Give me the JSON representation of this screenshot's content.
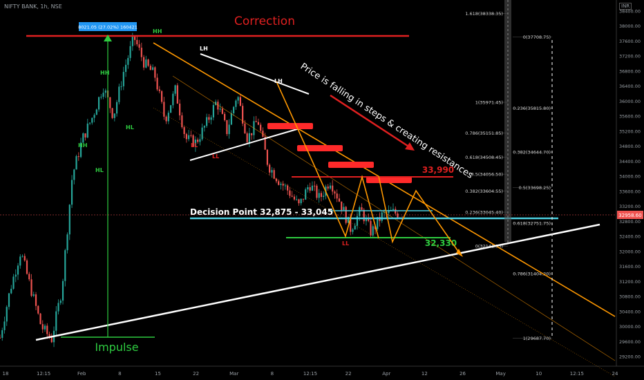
{
  "header": {
    "title": "NIFTY BANK, 1h, NSE",
    "currency": "INR"
  },
  "colors": {
    "bg": "#000000",
    "bull": "#26a69a",
    "bear": "#ef5350",
    "orange": "#ff9800",
    "white": "#ffffff",
    "red": "#e02020",
    "cyan": "#4dd0e1",
    "green": "#2ecc40",
    "fib": "#cfcfcf",
    "price_tag": "#ef5350",
    "measure": "#2196f3"
  },
  "chart_data": {
    "type": "line",
    "title": "",
    "ylim": [
      29020,
      38600
    ],
    "y_ticks": [
      29200,
      29600,
      30000,
      30400,
      30800,
      31200,
      31600,
      32000,
      32400,
      32800,
      33200,
      33600,
      34000,
      34400,
      34800,
      35200,
      35600,
      36000,
      36400,
      36800,
      37200,
      37600,
      38000,
      38400
    ],
    "x_ticks": [
      "18",
      "12:15",
      "Feb",
      "8",
      "15",
      "22",
      "Mar",
      "8",
      "12:15",
      "22",
      "Apr",
      "12",
      "26",
      "May",
      "10",
      "12:15",
      "24"
    ],
    "last_price": "32958.60",
    "price_path": [
      29700,
      31000,
      32000,
      31000,
      30000,
      29650,
      31000,
      34000,
      35000,
      35600,
      36400,
      35600,
      36800,
      37700,
      37000,
      36700,
      35500,
      36300,
      35000,
      34900,
      35400,
      36000,
      35200,
      36200,
      35000,
      35500,
      34300,
      33900,
      33600,
      33200,
      33800,
      33400,
      33900,
      33300,
      32600,
      33100,
      32500,
      32950,
      33050,
      32958
    ],
    "annotations": {
      "correction": "Correction",
      "impulse": "Impulse",
      "price_note": "Price is falling in steps & creating resistances",
      "decision": "Decision Point 32,875 - 33,045",
      "resistance_value": "33,990",
      "support_value": "32,330",
      "measure": "8021.05 (27.02%) 160421",
      "swings": [
        "HH",
        "HH",
        "HH",
        "HL",
        "HL",
        "LH",
        "LH",
        "LL",
        "LL",
        "LL"
      ]
    },
    "fib_left": [
      {
        "ratio": "1.618",
        "price": "38338.35",
        "y": 38338
      },
      {
        "ratio": "1",
        "price": "35971.45",
        "y": 35971
      },
      {
        "ratio": "0.786",
        "price": "35151.85",
        "y": 35152
      },
      {
        "ratio": "0.618",
        "price": "34508.45",
        "y": 34508
      },
      {
        "ratio": "0.5",
        "price": "34056.50",
        "y": 34056
      },
      {
        "ratio": "0.382",
        "price": "33604.55",
        "y": 33605
      },
      {
        "ratio": "0.236",
        "price": "33045.40",
        "y": 33045
      },
      {
        "ratio": "0",
        "price": "32141.55",
        "y": 32141
      }
    ],
    "fib_right": [
      {
        "ratio": "0",
        "price": "37708.75",
        "y": 37709
      },
      {
        "ratio": "0.236",
        "price": "35815.80",
        "y": 35816
      },
      {
        "ratio": "0.382",
        "price": "34644.70",
        "y": 34645
      },
      {
        "ratio": "0.5",
        "price": "33698.25",
        "y": 33698
      },
      {
        "ratio": "0.618",
        "price": "32751.75",
        "y": 32752
      },
      {
        "ratio": "0.786",
        "price": "31404.20",
        "y": 31404
      },
      {
        "ratio": "1",
        "price": "29687.70",
        "y": 29688
      }
    ]
  }
}
